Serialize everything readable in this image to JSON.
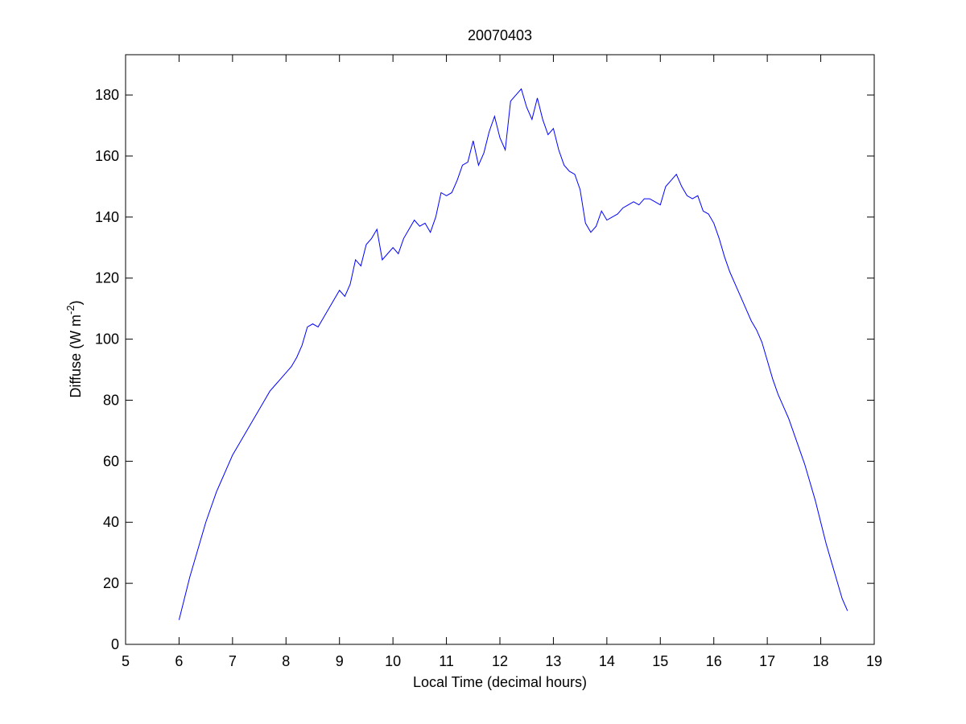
{
  "chart_data": {
    "type": "line",
    "title": "20070403",
    "xlabel": "Local Time (decimal hours)",
    "ylabel": [
      "Diffuse (W m",
      "-2",
      ")"
    ],
    "x": [
      6.0,
      6.1,
      6.2,
      6.3,
      6.4,
      6.5,
      6.6,
      6.7,
      6.8,
      6.9,
      7.0,
      7.1,
      7.2,
      7.3,
      7.4,
      7.5,
      7.6,
      7.7,
      7.8,
      7.9,
      8.0,
      8.1,
      8.2,
      8.3,
      8.4,
      8.5,
      8.6,
      8.7,
      8.8,
      8.9,
      9.0,
      9.1,
      9.2,
      9.3,
      9.4,
      9.5,
      9.6,
      9.7,
      9.8,
      9.9,
      10.0,
      10.1,
      10.2,
      10.3,
      10.4,
      10.5,
      10.6,
      10.7,
      10.8,
      10.9,
      11.0,
      11.1,
      11.2,
      11.3,
      11.4,
      11.5,
      11.6,
      11.7,
      11.8,
      11.9,
      12.0,
      12.1,
      12.2,
      12.3,
      12.4,
      12.5,
      12.6,
      12.7,
      12.8,
      12.9,
      13.0,
      13.1,
      13.2,
      13.3,
      13.4,
      13.5,
      13.6,
      13.7,
      13.8,
      13.9,
      14.0,
      14.1,
      14.2,
      14.3,
      14.4,
      14.5,
      14.6,
      14.7,
      14.8,
      14.9,
      15.0,
      15.1,
      15.2,
      15.3,
      15.4,
      15.5,
      15.6,
      15.7,
      15.8,
      15.9,
      16.0,
      16.1,
      16.2,
      16.3,
      16.4,
      16.5,
      16.6,
      16.7,
      16.8,
      16.9,
      17.0,
      17.1,
      17.2,
      17.3,
      17.4,
      17.5,
      17.6,
      17.7,
      17.8,
      17.9,
      18.0,
      18.1,
      18.2,
      18.3,
      18.4,
      18.5
    ],
    "series": [
      {
        "color": "#0000ff",
        "values": [
          8,
          15,
          22,
          28,
          34,
          40,
          45,
          50,
          54,
          58,
          62,
          65,
          68,
          71,
          74,
          77,
          80,
          83,
          85,
          87,
          89,
          91,
          94,
          98,
          104,
          105,
          104,
          107,
          110,
          113,
          116,
          114,
          118,
          126,
          124,
          131,
          133,
          136,
          126,
          128,
          130,
          128,
          133,
          136,
          139,
          137,
          138,
          135,
          140,
          148,
          147,
          148,
          152,
          157,
          158,
          165,
          157,
          161,
          168,
          173,
          166,
          162,
          178,
          180,
          182,
          176,
          172,
          179,
          172,
          167,
          169,
          162,
          157,
          155,
          154,
          149,
          138,
          135,
          137,
          142,
          139,
          140,
          141,
          143,
          144,
          145,
          144,
          146,
          146,
          145,
          144,
          150,
          152,
          154,
          150,
          147,
          146,
          147,
          142,
          141,
          138,
          133,
          127,
          122,
          118,
          114,
          110,
          106,
          103,
          99,
          93,
          87,
          82,
          78,
          74,
          69,
          64,
          59,
          53,
          47,
          40,
          33,
          27,
          21,
          15,
          11
        ]
      }
    ],
    "xlim": [
      5,
      19
    ],
    "xticks": [
      5,
      6,
      7,
      8,
      9,
      10,
      11,
      12,
      13,
      14,
      15,
      16,
      17,
      18,
      19
    ],
    "ylim": [
      0,
      193.2
    ],
    "yticks": [
      0,
      20,
      40,
      60,
      80,
      100,
      120,
      140,
      160,
      180
    ],
    "grid": false
  }
}
